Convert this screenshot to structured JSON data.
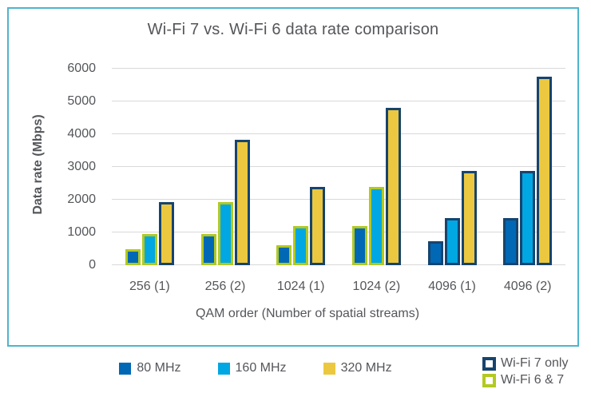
{
  "chart_data": {
    "type": "bar",
    "title": "Wi-Fi 7 vs. Wi-Fi 6 data rate comparison",
    "xlabel": "QAM order (Number of spatial streams)",
    "ylabel": "Data rate (Mbps)",
    "ylim": [
      0,
      6000
    ],
    "yticks": [
      0,
      1000,
      2000,
      3000,
      4000,
      5000,
      6000
    ],
    "grid": true,
    "legend_position": "bottom",
    "categories": [
      "256 (1)",
      "256 (2)",
      "1024 (1)",
      "1024 (2)",
      "4096 (1)",
      "4096 (2)"
    ],
    "series": [
      {
        "name": "80 MHz",
        "color": "#0168b5",
        "values": [
          480,
          960,
          600,
          1200,
          720,
          1440
        ]
      },
      {
        "name": "160 MHz",
        "color": "#00a7e2",
        "values": [
          960,
          1920,
          1200,
          2400,
          1440,
          2880
        ]
      },
      {
        "name": "320 MHz",
        "color": "#ebc83f",
        "values": [
          1920,
          3840,
          2400,
          4800,
          2880,
          5760
        ]
      }
    ],
    "bar_outline_by_group": [
      [
        "wifi67",
        "wifi67",
        "wifi7only"
      ],
      [
        "wifi67",
        "wifi67",
        "wifi7only"
      ],
      [
        "wifi67",
        "wifi67",
        "wifi7only"
      ],
      [
        "wifi67",
        "wifi67",
        "wifi7only"
      ],
      [
        "wifi7only",
        "wifi7only",
        "wifi7only"
      ],
      [
        "wifi7only",
        "wifi7only",
        "wifi7only"
      ]
    ],
    "outline_colors": {
      "wifi7only": "#17446e",
      "wifi67": "#b2c921"
    },
    "outline_legend": [
      {
        "key": "wifi7only",
        "label": "Wi-Fi 7 only"
      },
      {
        "key": "wifi67",
        "label": "Wi-Fi 6 & 7"
      }
    ]
  },
  "colors": {
    "background": "#ffffff",
    "frame_border": "#4fb4cd",
    "text": "#54565a",
    "gridline": "#d9d9d9"
  }
}
